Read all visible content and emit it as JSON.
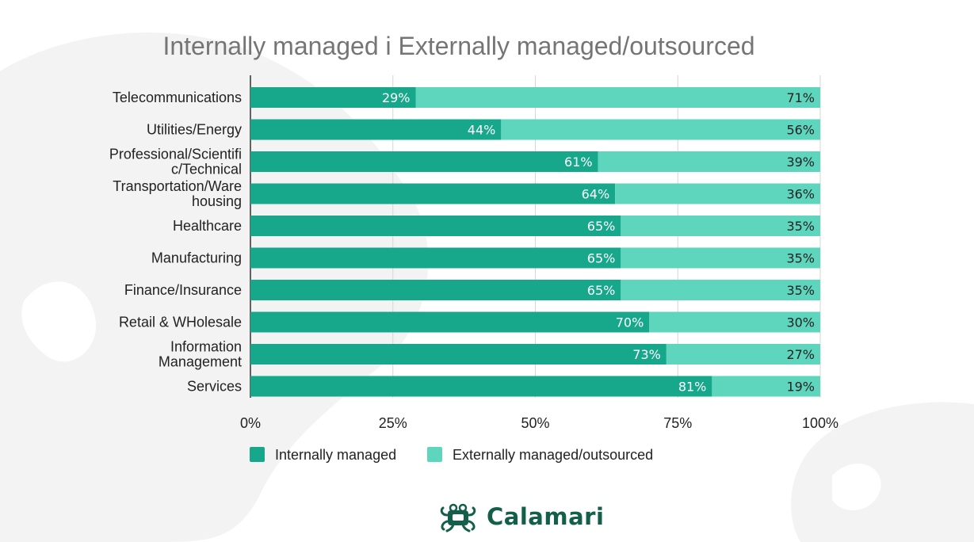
{
  "chart_data": {
    "type": "bar",
    "orientation": "horizontal",
    "stacked": true,
    "title": "Internally managed i Externally managed/outsourced",
    "categories": [
      "Telecommunications",
      "Utilities/Energy",
      "Professional/Scientific/Technical",
      "Transportation/Warehousing",
      "Healthcare",
      "Manufacturing",
      "Finance/Insurance",
      "Retail & WHolesale",
      "Information Management",
      "Services"
    ],
    "category_display": [
      [
        "Telecommunications"
      ],
      [
        "Utilities/Energy"
      ],
      [
        "Professional/Scientifi",
        "c/Technical"
      ],
      [
        "Transportation/Ware",
        "housing"
      ],
      [
        "Healthcare"
      ],
      [
        "Manufacturing"
      ],
      [
        "Finance/Insurance"
      ],
      [
        "Retail & WHolesale"
      ],
      [
        "Information",
        "Management"
      ],
      [
        "Services"
      ]
    ],
    "series": [
      {
        "name": "Internally managed",
        "color": "#17a88c",
        "values": [
          29,
          44,
          61,
          64,
          65,
          65,
          65,
          70,
          73,
          81
        ]
      },
      {
        "name": "Externally managed/outsourced",
        "color": "#5dd6bd",
        "values": [
          71,
          56,
          39,
          36,
          35,
          35,
          35,
          30,
          27,
          19
        ]
      }
    ],
    "xlim": [
      0,
      100
    ],
    "xticks": [
      0,
      25,
      50,
      75,
      100
    ],
    "xtick_labels": [
      "0%",
      "25%",
      "50%",
      "75%",
      "100%"
    ],
    "value_suffix": "%",
    "grid": true,
    "legend_position": "bottom"
  },
  "logo": {
    "text": "Calamari"
  },
  "colors": {
    "background_shape": "#f1f1f1",
    "title": "#757575",
    "logo": "#145f4a"
  }
}
